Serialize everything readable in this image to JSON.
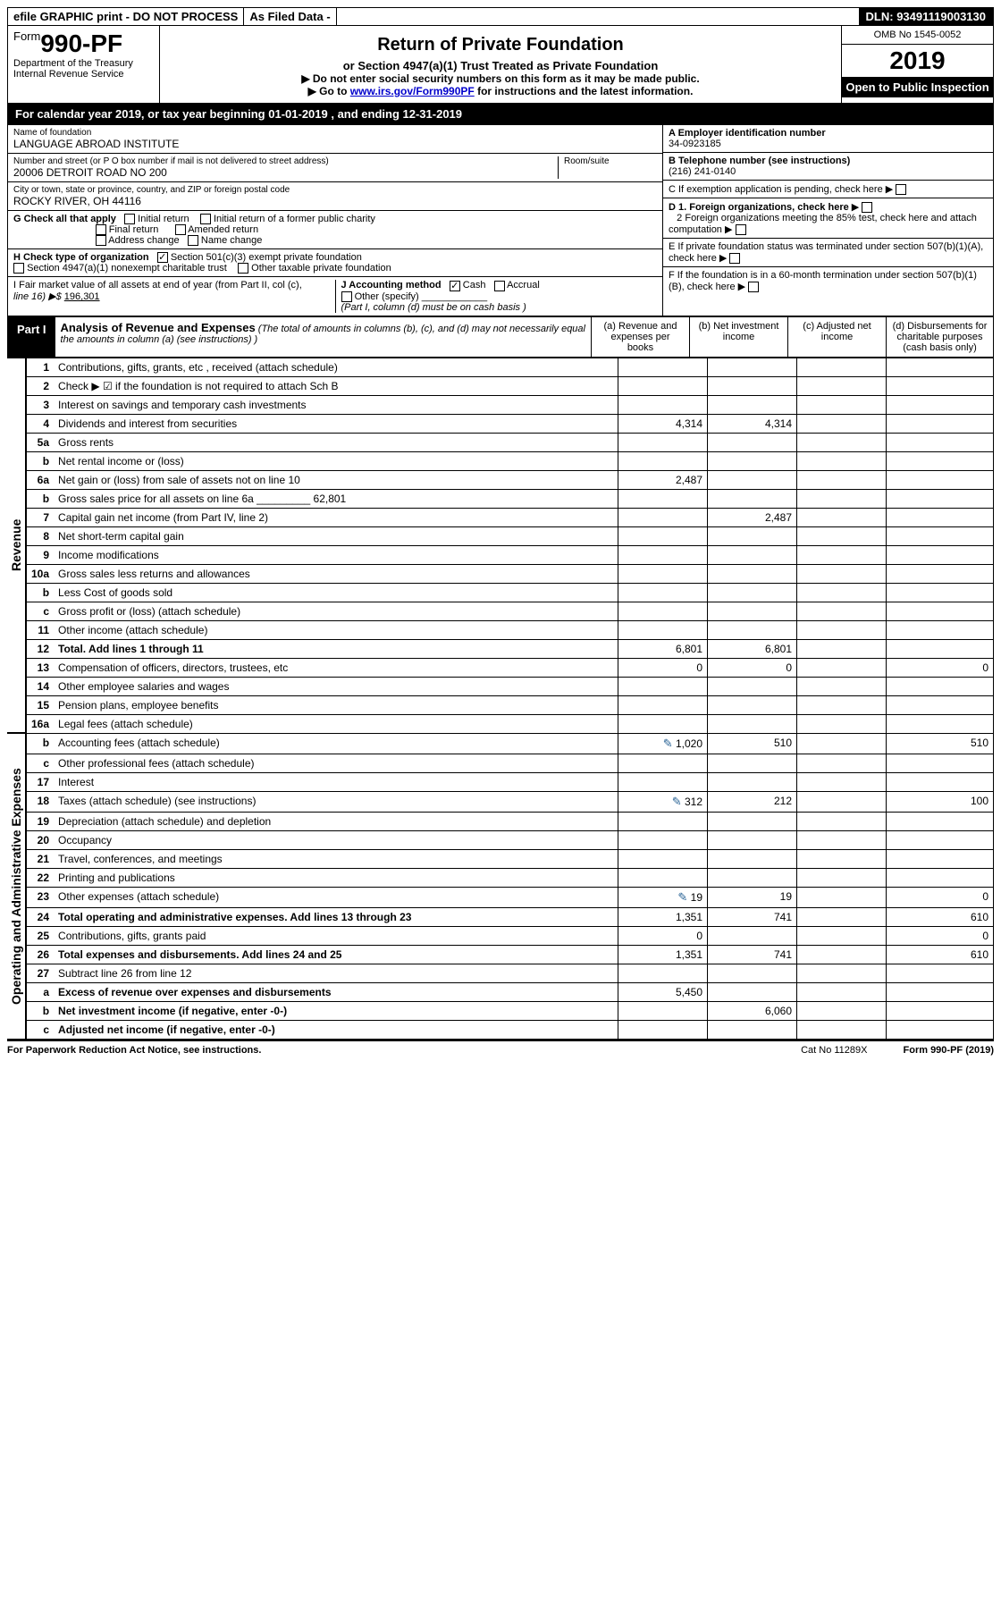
{
  "top": {
    "efile": "efile GRAPHIC print - DO NOT PROCESS",
    "asfiled": "As Filed Data -",
    "dln_label": "DLN:",
    "dln": "93491119003130"
  },
  "header": {
    "form_prefix": "Form",
    "form_number": "990-PF",
    "dept": "Department of the Treasury",
    "irs": "Internal Revenue Service",
    "title": "Return of Private Foundation",
    "sub": "or Section 4947(a)(1) Trust Treated as Private Foundation",
    "line1": "▶ Do not enter social security numbers on this form as it may be made public.",
    "line2_pre": "▶ Go to ",
    "line2_link": "www.irs.gov/Form990PF",
    "line2_post": " for instructions and the latest information.",
    "omb": "OMB No 1545-0052",
    "year": "2019",
    "inspect": "Open to Public Inspection"
  },
  "cal": {
    "pre": "For calendar year 2019, or tax year beginning ",
    "begin": "01-01-2019",
    "mid": " , and ending ",
    "end": "12-31-2019"
  },
  "ident": {
    "name_label": "Name of foundation",
    "name": "LANGUAGE ABROAD INSTITUTE",
    "addr_label": "Number and street (or P O  box number if mail is not delivered to street address)",
    "room_label": "Room/suite",
    "addr": "20006 DETROIT ROAD NO 200",
    "city_label": "City or town, state or province, country, and ZIP or foreign postal code",
    "city": "ROCKY RIVER, OH  44116",
    "A_label": "A Employer identification number",
    "A": "34-0923185",
    "B_label": "B Telephone number (see instructions)",
    "B": "(216) 241-0140",
    "C": "C If exemption application is pending, check here",
    "D1": "D 1. Foreign organizations, check here",
    "D2": "2 Foreign organizations meeting the 85% test, check here and attach computation",
    "E": "E  If private foundation status was terminated under section 507(b)(1)(A), check here",
    "F": "F  If the foundation is in a 60-month termination under section 507(b)(1)(B), check here"
  },
  "G": {
    "label": "G Check all that apply",
    "opts": [
      "Initial return",
      "Initial return of a former public charity",
      "Final return",
      "Amended return",
      "Address change",
      "Name change"
    ]
  },
  "H": {
    "label": "H Check type of organization",
    "opt1": "Section 501(c)(3) exempt private foundation",
    "opt2": "Section 4947(a)(1) nonexempt charitable trust",
    "opt3": "Other taxable private foundation"
  },
  "I": {
    "label1": "I Fair market value of all assets at end of year (from Part II, col  (c),",
    "label2": "line 16) ▶$ ",
    "value": "196,301"
  },
  "J": {
    "label": "J Accounting method",
    "cash": "Cash",
    "accrual": "Accrual",
    "other": "Other (specify)",
    "note": "(Part I, column (d) must be on cash basis )"
  },
  "part1": {
    "tag": "Part I",
    "title": "Analysis of Revenue and Expenses",
    "title_note": " (The total of amounts in columns (b), (c), and (d) may not necessarily equal the amounts in column (a) (see instructions) )",
    "col_a": "(a) Revenue and expenses per books",
    "col_b": "(b) Net investment income",
    "col_c": "(c) Adjusted net income",
    "col_d": "(d) Disbursements for charitable purposes (cash basis only)",
    "side_rev": "Revenue",
    "side_exp": "Operating and Administrative Expenses"
  },
  "rows": [
    {
      "n": "1",
      "d": "Contributions, gifts, grants, etc , received (attach schedule)",
      "a": "",
      "b": "",
      "c": "",
      "dd": ""
    },
    {
      "n": "2",
      "d": "Check ▶ ☑ if the foundation is not required to attach Sch B",
      "a": "",
      "b": "",
      "c": "",
      "dd": ""
    },
    {
      "n": "3",
      "d": "Interest on savings and temporary cash investments",
      "a": "",
      "b": "",
      "c": "",
      "dd": ""
    },
    {
      "n": "4",
      "d": "Dividends and interest from securities",
      "a": "4,314",
      "b": "4,314",
      "c": "",
      "dd": ""
    },
    {
      "n": "5a",
      "d": "Gross rents",
      "a": "",
      "b": "",
      "c": "",
      "dd": ""
    },
    {
      "n": "b",
      "d": "Net rental income or (loss)",
      "a": "",
      "b": "",
      "c": "",
      "dd": ""
    },
    {
      "n": "6a",
      "d": "Net gain or (loss) from sale of assets not on line 10",
      "a": "2,487",
      "b": "",
      "c": "",
      "dd": ""
    },
    {
      "n": "b",
      "d": "Gross sales price for all assets on line 6a _________ 62,801",
      "a": "",
      "b": "",
      "c": "",
      "dd": ""
    },
    {
      "n": "7",
      "d": "Capital gain net income (from Part IV, line 2)",
      "a": "",
      "b": "2,487",
      "c": "",
      "dd": ""
    },
    {
      "n": "8",
      "d": "Net short-term capital gain",
      "a": "",
      "b": "",
      "c": "",
      "dd": ""
    },
    {
      "n": "9",
      "d": "Income modifications",
      "a": "",
      "b": "",
      "c": "",
      "dd": ""
    },
    {
      "n": "10a",
      "d": "Gross sales less returns and allowances",
      "a": "",
      "b": "",
      "c": "",
      "dd": ""
    },
    {
      "n": "b",
      "d": "Less  Cost of goods sold",
      "a": "",
      "b": "",
      "c": "",
      "dd": ""
    },
    {
      "n": "c",
      "d": "Gross profit or (loss) (attach schedule)",
      "a": "",
      "b": "",
      "c": "",
      "dd": ""
    },
    {
      "n": "11",
      "d": "Other income (attach schedule)",
      "a": "",
      "b": "",
      "c": "",
      "dd": ""
    },
    {
      "n": "12",
      "d": "Total. Add lines 1 through 11",
      "a": "6,801",
      "b": "6,801",
      "c": "",
      "dd": "",
      "bold": true
    },
    {
      "n": "13",
      "d": "Compensation of officers, directors, trustees, etc",
      "a": "0",
      "b": "0",
      "c": "",
      "dd": "0"
    },
    {
      "n": "14",
      "d": "Other employee salaries and wages",
      "a": "",
      "b": "",
      "c": "",
      "dd": ""
    },
    {
      "n": "15",
      "d": "Pension plans, employee benefits",
      "a": "",
      "b": "",
      "c": "",
      "dd": ""
    },
    {
      "n": "16a",
      "d": "Legal fees (attach schedule)",
      "a": "",
      "b": "",
      "c": "",
      "dd": ""
    },
    {
      "n": "b",
      "d": "Accounting fees (attach schedule)",
      "a": "1,020",
      "b": "510",
      "c": "",
      "dd": "510",
      "icon": true
    },
    {
      "n": "c",
      "d": "Other professional fees (attach schedule)",
      "a": "",
      "b": "",
      "c": "",
      "dd": ""
    },
    {
      "n": "17",
      "d": "Interest",
      "a": "",
      "b": "",
      "c": "",
      "dd": ""
    },
    {
      "n": "18",
      "d": "Taxes (attach schedule) (see instructions)",
      "a": "312",
      "b": "212",
      "c": "",
      "dd": "100",
      "icon": true
    },
    {
      "n": "19",
      "d": "Depreciation (attach schedule) and depletion",
      "a": "",
      "b": "",
      "c": "",
      "dd": ""
    },
    {
      "n": "20",
      "d": "Occupancy",
      "a": "",
      "b": "",
      "c": "",
      "dd": ""
    },
    {
      "n": "21",
      "d": "Travel, conferences, and meetings",
      "a": "",
      "b": "",
      "c": "",
      "dd": ""
    },
    {
      "n": "22",
      "d": "Printing and publications",
      "a": "",
      "b": "",
      "c": "",
      "dd": ""
    },
    {
      "n": "23",
      "d": "Other expenses (attach schedule)",
      "a": "19",
      "b": "19",
      "c": "",
      "dd": "0",
      "icon": true
    },
    {
      "n": "24",
      "d": "Total operating and administrative expenses. Add lines 13 through 23",
      "a": "1,351",
      "b": "741",
      "c": "",
      "dd": "610",
      "bold": true
    },
    {
      "n": "25",
      "d": "Contributions, gifts, grants paid",
      "a": "0",
      "b": "",
      "c": "",
      "dd": "0"
    },
    {
      "n": "26",
      "d": "Total expenses and disbursements. Add lines 24 and 25",
      "a": "1,351",
      "b": "741",
      "c": "",
      "dd": "610",
      "bold": true
    },
    {
      "n": "27",
      "d": "Subtract line 26 from line 12",
      "a": "",
      "b": "",
      "c": "",
      "dd": ""
    },
    {
      "n": "a",
      "d": "Excess of revenue over expenses and disbursements",
      "a": "5,450",
      "b": "",
      "c": "",
      "dd": "",
      "bold": true
    },
    {
      "n": "b",
      "d": "Net investment income (if negative, enter -0-)",
      "a": "",
      "b": "6,060",
      "c": "",
      "dd": "",
      "bold": true
    },
    {
      "n": "c",
      "d": "Adjusted net income (if negative, enter -0-)",
      "a": "",
      "b": "",
      "c": "",
      "dd": "",
      "bold": true
    }
  ],
  "footer": {
    "left": "For Paperwork Reduction Act Notice, see instructions.",
    "mid": "Cat  No  11289X",
    "right": "Form 990-PF (2019)"
  }
}
